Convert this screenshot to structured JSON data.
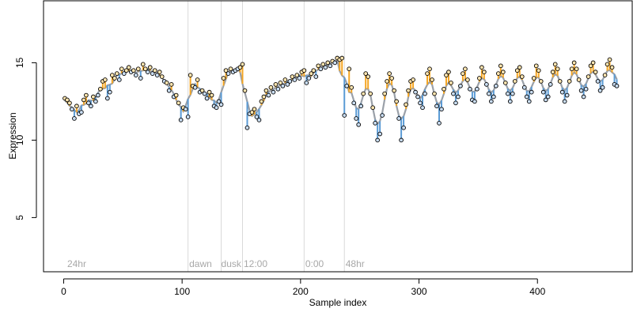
{
  "chart_data": {
    "type": "scatter",
    "title": "",
    "xlabel": "Sample index",
    "ylabel": "Expression",
    "xlim": [
      -17,
      480
    ],
    "ylim": [
      1.5,
      19.0
    ],
    "xticks": [
      0,
      100,
      200,
      300,
      400
    ],
    "yticks": [
      5,
      10,
      15
    ],
    "grid": false,
    "legend": "none",
    "annotations": [
      {
        "text": "24hr",
        "x": 3
      },
      {
        "text": "dawn",
        "x": 106
      },
      {
        "text": "dusk",
        "x": 133
      },
      {
        "text": "12:00",
        "x": 152
      },
      {
        "text": "0:00",
        "x": 204
      },
      {
        "text": "48hr",
        "x": 238
      }
    ],
    "vlines": [
      105,
      133,
      151,
      203,
      237
    ],
    "colors": {
      "fit_line": "#9aa0a8",
      "residual_up": "#f5a623",
      "residual_down": "#5b9bd5",
      "point_edge": "#000000",
      "point_fill_high": "#fde5b0",
      "point_fill_low": "#c9ddf2",
      "separator": "#d9d9d9"
    },
    "series": [
      {
        "values": [
          [
            1,
            12.7
          ],
          [
            3,
            12.6
          ],
          [
            5,
            12.4
          ],
          [
            7,
            12.0
          ],
          [
            9,
            11.4
          ],
          [
            11,
            12.2
          ],
          [
            13,
            11.7
          ],
          [
            15,
            11.8
          ],
          [
            17,
            12.6
          ],
          [
            19,
            12.9
          ],
          [
            21,
            12.4
          ],
          [
            23,
            12.2
          ],
          [
            25,
            12.8
          ],
          [
            27,
            12.5
          ],
          [
            29,
            12.9
          ],
          [
            31,
            13.3
          ],
          [
            33,
            13.8
          ],
          [
            35,
            13.9
          ],
          [
            37,
            12.7
          ],
          [
            39,
            13.1
          ],
          [
            41,
            14.2
          ],
          [
            43,
            14.0
          ],
          [
            45,
            14.3
          ],
          [
            47,
            13.9
          ],
          [
            49,
            14.6
          ],
          [
            51,
            14.3
          ],
          [
            53,
            14.5
          ],
          [
            55,
            14.7
          ],
          [
            57,
            14.4
          ],
          [
            59,
            14.5
          ],
          [
            61,
            14.2
          ],
          [
            63,
            14.6
          ],
          [
            65,
            14.0
          ],
          [
            67,
            14.9
          ],
          [
            69,
            14.6
          ],
          [
            71,
            14.4
          ],
          [
            73,
            14.7
          ],
          [
            75,
            14.3
          ],
          [
            77,
            14.5
          ],
          [
            79,
            14.2
          ],
          [
            81,
            14.4
          ],
          [
            83,
            14.1
          ],
          [
            85,
            13.8
          ],
          [
            87,
            13.7
          ],
          [
            89,
            13.2
          ],
          [
            91,
            13.6
          ],
          [
            93,
            12.8
          ],
          [
            95,
            12.9
          ],
          [
            97,
            12.4
          ],
          [
            99,
            11.3
          ],
          [
            101,
            12.1
          ],
          [
            103,
            12.0
          ],
          [
            105,
            11.5
          ],
          [
            107,
            14.2
          ],
          [
            109,
            13.5
          ],
          [
            111,
            13.4
          ],
          [
            113,
            13.9
          ],
          [
            115,
            13.1
          ],
          [
            117,
            13.2
          ],
          [
            119,
            13.0
          ],
          [
            121,
            12.7
          ],
          [
            123,
            13.1
          ],
          [
            125,
            12.9
          ],
          [
            127,
            12.2
          ],
          [
            129,
            12.1
          ],
          [
            131,
            12.5
          ],
          [
            133,
            12.3
          ],
          [
            135,
            14.0
          ],
          [
            137,
            14.5
          ],
          [
            139,
            14.3
          ],
          [
            141,
            14.6
          ],
          [
            143,
            14.4
          ],
          [
            145,
            14.5
          ],
          [
            147,
            14.6
          ],
          [
            149,
            14.7
          ],
          [
            151,
            14.9
          ],
          [
            153,
            13.2
          ],
          [
            155,
            10.8
          ],
          [
            157,
            11.7
          ],
          [
            159,
            11.8
          ],
          [
            161,
            12.0
          ],
          [
            163,
            11.5
          ],
          [
            165,
            11.3
          ],
          [
            167,
            12.5
          ],
          [
            169,
            12.8
          ],
          [
            171,
            13.2
          ],
          [
            173,
            12.9
          ],
          [
            175,
            13.4
          ],
          [
            177,
            13.1
          ],
          [
            179,
            13.6
          ],
          [
            181,
            13.3
          ],
          [
            183,
            13.7
          ],
          [
            185,
            13.5
          ],
          [
            187,
            13.9
          ],
          [
            189,
            13.6
          ],
          [
            191,
            13.8
          ],
          [
            193,
            14.1
          ],
          [
            195,
            13.9
          ],
          [
            197,
            14.2
          ],
          [
            199,
            14.0
          ],
          [
            201,
            14.4
          ],
          [
            203,
            14.5
          ],
          [
            205,
            13.7
          ],
          [
            207,
            14.0
          ],
          [
            209,
            14.3
          ],
          [
            211,
            14.5
          ],
          [
            213,
            14.1
          ],
          [
            215,
            14.8
          ],
          [
            217,
            14.6
          ],
          [
            219,
            14.9
          ],
          [
            221,
            14.7
          ],
          [
            223,
            15.0
          ],
          [
            225,
            14.8
          ],
          [
            227,
            15.1
          ],
          [
            229,
            15.0
          ],
          [
            231,
            15.3
          ],
          [
            233,
            15.2
          ],
          [
            235,
            15.3
          ],
          [
            237,
            11.6
          ],
          [
            239,
            13.5
          ],
          [
            241,
            14.6
          ],
          [
            243,
            13.4
          ],
          [
            245,
            12.4
          ],
          [
            247,
            11.4
          ],
          [
            249,
            11.0
          ],
          [
            251,
            12.2
          ],
          [
            253,
            13.0
          ],
          [
            255,
            14.3
          ],
          [
            257,
            14.1
          ],
          [
            259,
            13.0
          ],
          [
            261,
            12.1
          ],
          [
            263,
            11.1
          ],
          [
            265,
            10.0
          ],
          [
            267,
            10.4
          ],
          [
            269,
            11.6
          ],
          [
            271,
            13.0
          ],
          [
            273,
            13.8
          ],
          [
            275,
            14.3
          ],
          [
            277,
            14.0
          ],
          [
            279,
            13.2
          ],
          [
            281,
            12.5
          ],
          [
            283,
            11.4
          ],
          [
            285,
            10.0
          ],
          [
            287,
            10.8
          ],
          [
            289,
            12.3
          ],
          [
            291,
            13.2
          ],
          [
            293,
            13.8
          ],
          [
            295,
            13.9
          ],
          [
            297,
            13.1
          ],
          [
            299,
            12.8
          ],
          [
            301,
            12.4
          ],
          [
            303,
            12.1
          ],
          [
            305,
            13.0
          ],
          [
            307,
            14.3
          ],
          [
            309,
            14.6
          ],
          [
            311,
            13.9
          ],
          [
            313,
            13.0
          ],
          [
            315,
            12.2
          ],
          [
            317,
            11.1
          ],
          [
            319,
            12.0
          ],
          [
            321,
            13.3
          ],
          [
            323,
            14.2
          ],
          [
            325,
            14.4
          ],
          [
            327,
            13.7
          ],
          [
            329,
            13.0
          ],
          [
            331,
            12.4
          ],
          [
            333,
            12.8
          ],
          [
            335,
            13.5
          ],
          [
            337,
            14.3
          ],
          [
            339,
            14.6
          ],
          [
            341,
            13.9
          ],
          [
            343,
            13.3
          ],
          [
            345,
            12.6
          ],
          [
            347,
            12.5
          ],
          [
            349,
            13.3
          ],
          [
            351,
            14.0
          ],
          [
            353,
            14.7
          ],
          [
            355,
            14.4
          ],
          [
            357,
            13.6
          ],
          [
            359,
            13.0
          ],
          [
            361,
            12.5
          ],
          [
            363,
            12.8
          ],
          [
            365,
            13.5
          ],
          [
            367,
            14.3
          ],
          [
            369,
            14.8
          ],
          [
            371,
            14.4
          ],
          [
            373,
            13.7
          ],
          [
            375,
            13.0
          ],
          [
            377,
            12.5
          ],
          [
            379,
            13.0
          ],
          [
            381,
            13.8
          ],
          [
            383,
            14.5
          ],
          [
            385,
            14.7
          ],
          [
            387,
            14.1
          ],
          [
            389,
            13.4
          ],
          [
            391,
            12.8
          ],
          [
            393,
            12.5
          ],
          [
            395,
            13.1
          ],
          [
            397,
            14.0
          ],
          [
            399,
            14.8
          ],
          [
            401,
            14.5
          ],
          [
            403,
            13.8
          ],
          [
            405,
            13.1
          ],
          [
            407,
            12.6
          ],
          [
            409,
            12.8
          ],
          [
            411,
            13.6
          ],
          [
            413,
            14.4
          ],
          [
            415,
            14.9
          ],
          [
            417,
            14.6
          ],
          [
            419,
            13.8
          ],
          [
            421,
            13.1
          ],
          [
            423,
            12.5
          ],
          [
            425,
            12.9
          ],
          [
            427,
            13.8
          ],
          [
            429,
            14.6
          ],
          [
            431,
            15.0
          ],
          [
            433,
            14.6
          ],
          [
            435,
            13.9
          ],
          [
            437,
            13.2
          ],
          [
            439,
            12.8
          ],
          [
            441,
            13.3
          ],
          [
            443,
            14.1
          ],
          [
            445,
            14.8
          ],
          [
            447,
            15.0
          ],
          [
            449,
            14.4
          ],
          [
            451,
            13.8
          ],
          [
            453,
            13.2
          ],
          [
            455,
            13.4
          ],
          [
            457,
            14.2
          ],
          [
            459,
            14.9
          ],
          [
            461,
            15.2
          ],
          [
            463,
            14.7
          ],
          [
            465,
            13.6
          ],
          [
            467,
            13.5
          ]
        ]
      }
    ]
  }
}
